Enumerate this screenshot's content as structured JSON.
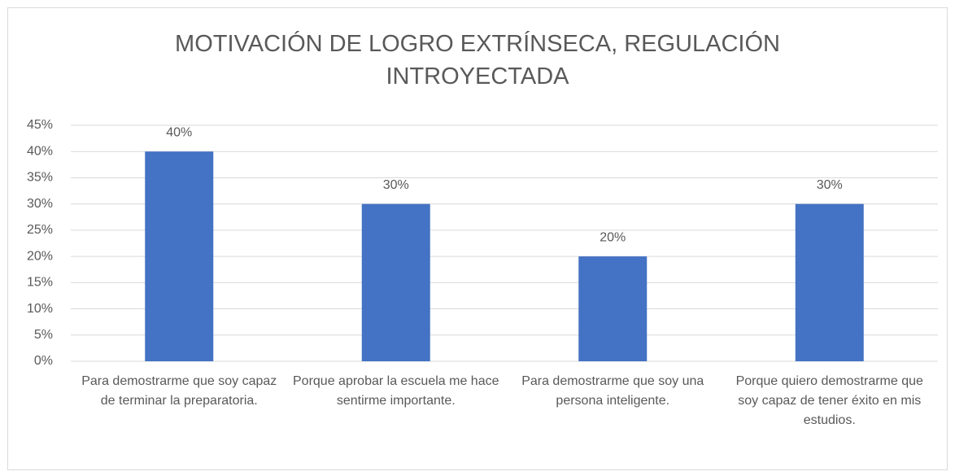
{
  "chart_data": {
    "type": "bar",
    "title": "MOTIVACIÓN DE LOGRO EXTRÍNSECA, REGULACIÓN INTROYECTADA",
    "categories": [
      "Para demostrarme que soy capaz de terminar la preparatoria.",
      "Porque aprobar la escuela me hace sentirme importante.",
      "Para demostrarme que soy una persona inteligente.",
      "Porque quiero demostrarme que soy capaz de tener éxito en mis estudios."
    ],
    "values": [
      40,
      30,
      20,
      30
    ],
    "value_labels": [
      "40%",
      "30%",
      "20%",
      "30%"
    ],
    "color": "#4472c4",
    "ylim": [
      0,
      45
    ],
    "yticks": [
      {
        "value": 0,
        "label": "0%"
      },
      {
        "value": 5,
        "label": "5%"
      },
      {
        "value": 10,
        "label": "10%"
      },
      {
        "value": 15,
        "label": "15%"
      },
      {
        "value": 20,
        "label": "20%"
      },
      {
        "value": 25,
        "label": "25%"
      },
      {
        "value": 30,
        "label": "30%"
      },
      {
        "value": 35,
        "label": "35%"
      },
      {
        "value": 40,
        "label": "40%"
      },
      {
        "value": 45,
        "label": "45%"
      }
    ],
    "grid": true
  }
}
